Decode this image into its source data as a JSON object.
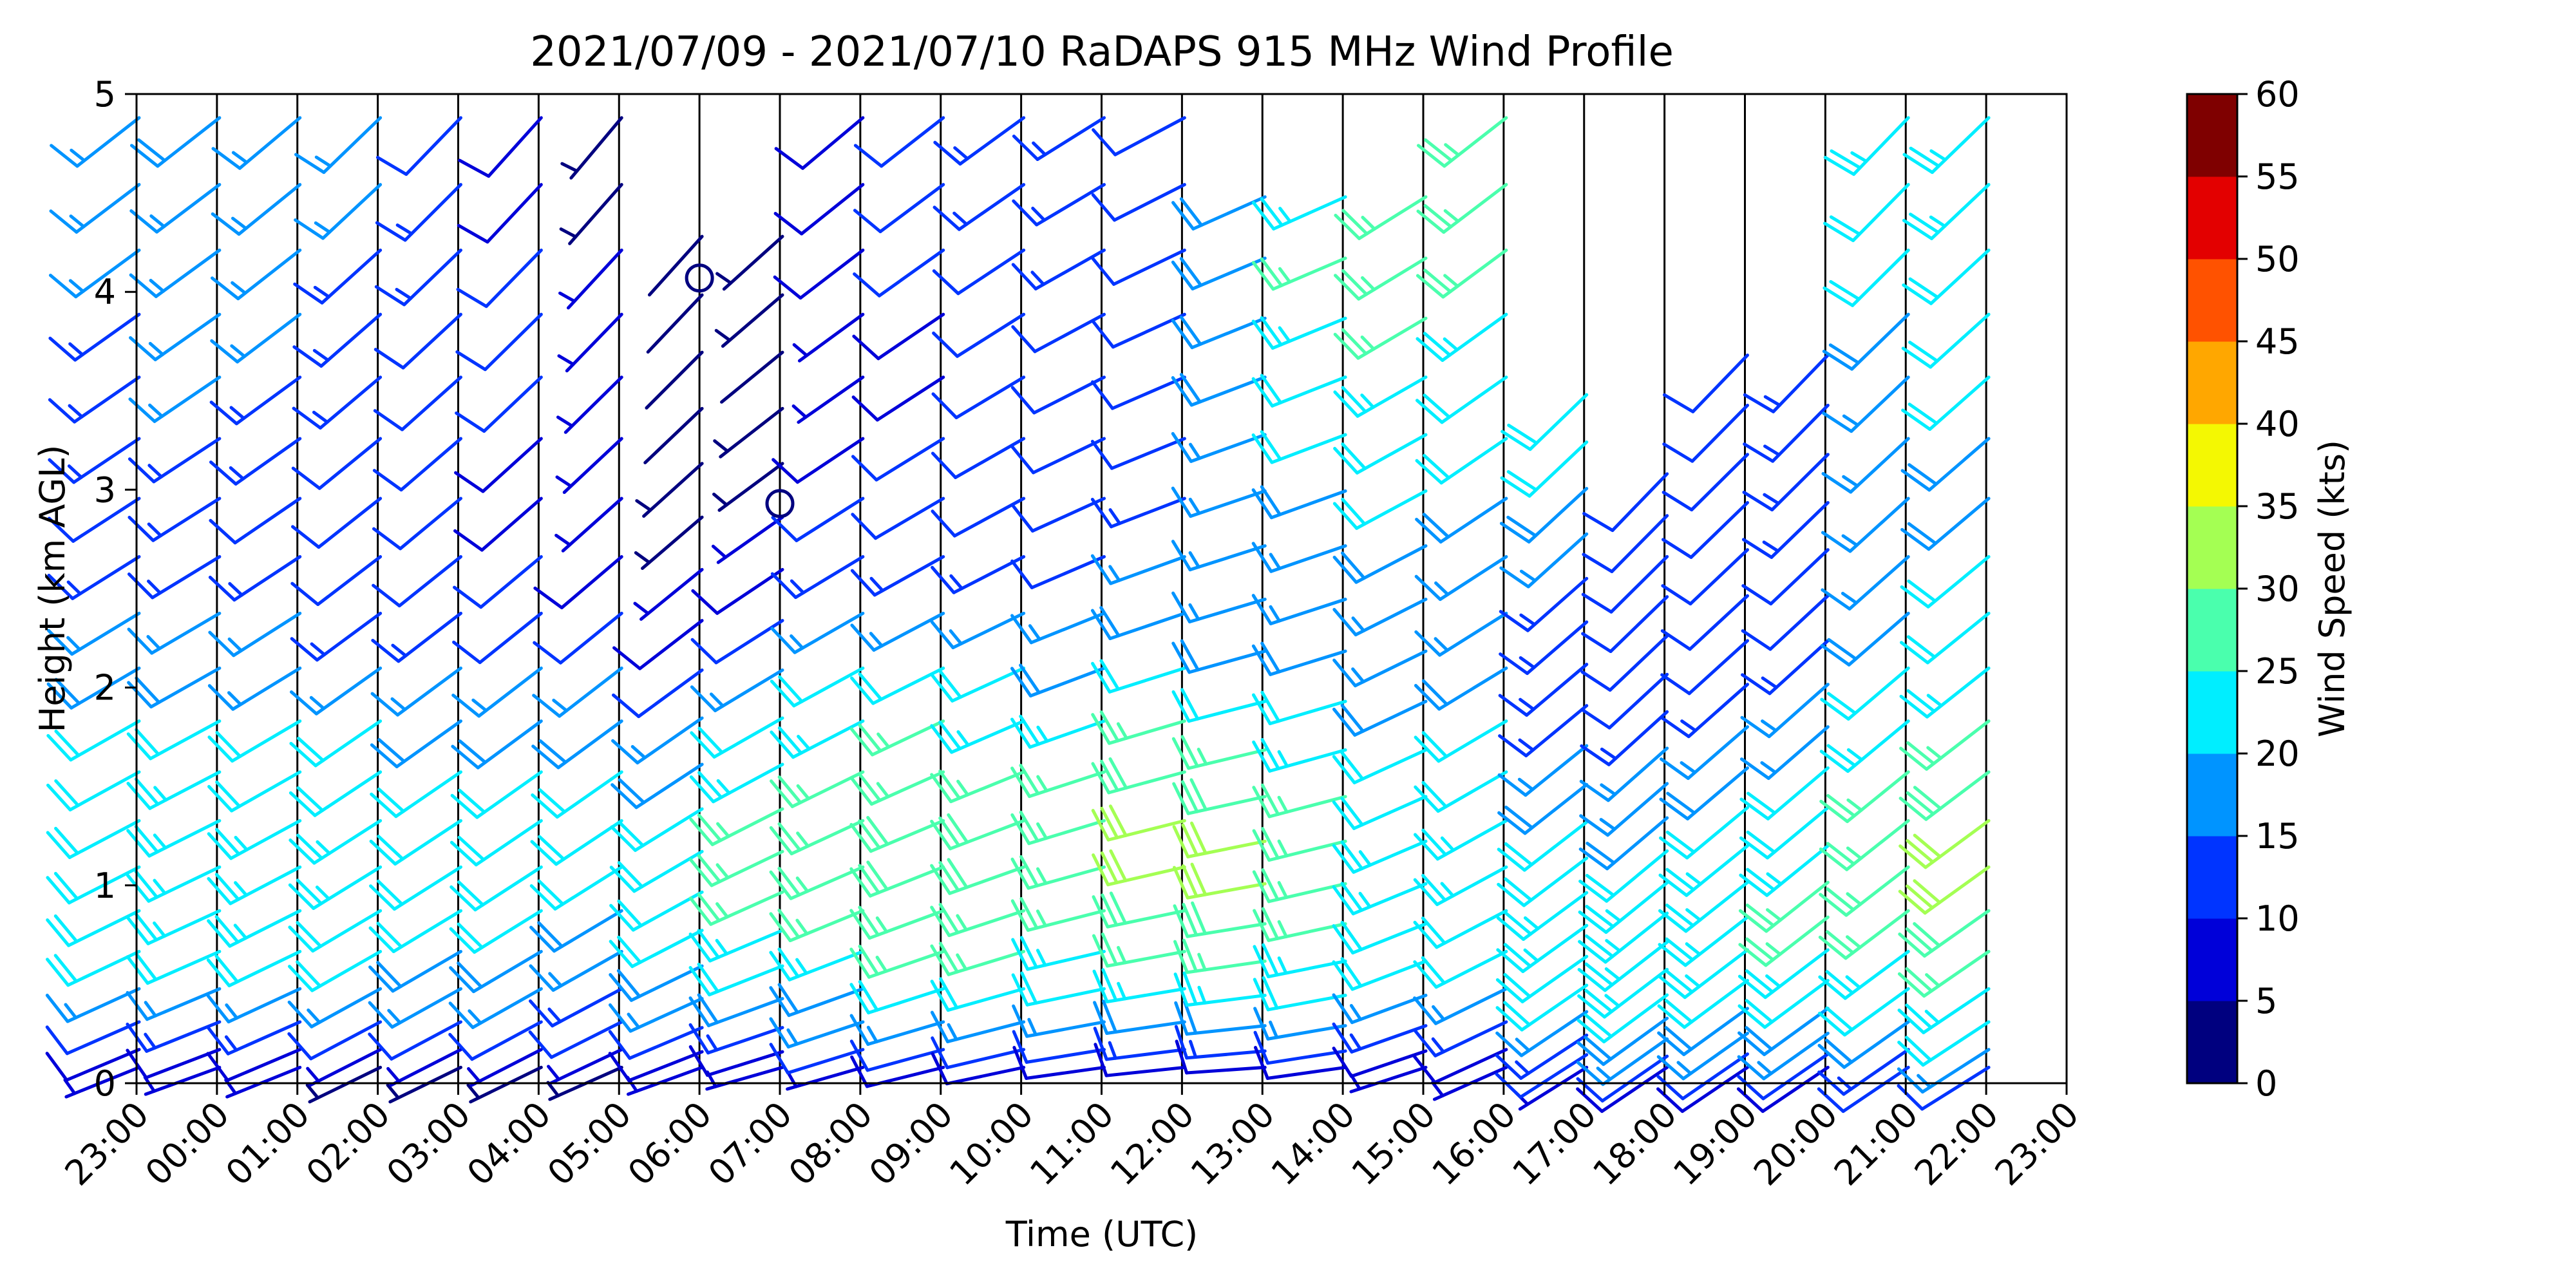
{
  "chart_data": {
    "type": "wind-barb-profile",
    "title": "2021/07/09 - 2021/07/10 RaDAPS 915 MHz Wind Profile",
    "xlabel": "Time (UTC)",
    "ylabel": "Height (km AGL)",
    "x_tick_labels": [
      "23:00",
      "00:00",
      "01:00",
      "02:00",
      "03:00",
      "04:00",
      "05:00",
      "06:00",
      "07:00",
      "08:00",
      "09:00",
      "10:00",
      "11:00",
      "12:00",
      "13:00",
      "14:00",
      "15:00",
      "16:00",
      "17:00",
      "18:00",
      "19:00",
      "20:00",
      "21:00",
      "22:00",
      "23:00"
    ],
    "y_ticks": [
      0,
      1,
      2,
      3,
      4,
      5
    ],
    "ylim": [
      0,
      5
    ],
    "colorbar": {
      "label": "Wind Speed (kts)",
      "ticks": [
        0,
        5,
        10,
        15,
        20,
        25,
        30,
        35,
        40,
        45,
        50,
        55,
        60
      ],
      "levels": [
        0,
        5,
        10,
        15,
        20,
        25,
        30,
        35,
        40,
        45,
        50,
        55,
        60
      ],
      "colors": [
        "#00007f",
        "#0000d9",
        "#0034ff",
        "#0094ff",
        "#00eeff",
        "#4affad",
        "#a4ff53",
        "#f4f802",
        "#ffa700",
        "#ff5200",
        "#e30000",
        "#7f0000"
      ]
    },
    "grid": "vertical lines at each hour",
    "profiles": [
      {
        "time": "23:00",
        "top_km": 5.0,
        "base_dir": 235,
        "dir_bottom": 248,
        "dir_top": 232,
        "speeds": [
          5,
          8,
          12,
          16,
          20,
          21,
          22,
          22,
          21,
          20,
          18,
          15,
          13,
          12,
          13,
          14,
          14,
          15,
          16,
          17
        ]
      },
      {
        "time": "00:00",
        "top_km": 5.0,
        "base_dir": 238,
        "dir_bottom": 250,
        "dir_top": 232,
        "speeds": [
          6,
          9,
          13,
          17,
          21,
          23,
          24,
          24,
          23,
          21,
          19,
          16,
          14,
          13,
          14,
          15,
          15,
          16,
          17,
          18
        ]
      },
      {
        "time": "01:00",
        "top_km": 5.0,
        "base_dir": 236,
        "dir_bottom": 248,
        "dir_top": 230,
        "speeds": [
          5,
          8,
          13,
          17,
          21,
          23,
          24,
          24,
          22,
          20,
          17,
          15,
          13,
          12,
          13,
          14,
          15,
          15,
          16,
          16
        ]
      },
      {
        "time": "02:00",
        "top_km": 5.0,
        "base_dir": 232,
        "dir_bottom": 244,
        "dir_top": 226,
        "speeds": [
          4,
          7,
          12,
          16,
          20,
          22,
          23,
          23,
          22,
          20,
          17,
          14,
          12,
          11,
          12,
          13,
          14,
          14,
          15,
          15
        ]
      },
      {
        "time": "03:00",
        "top_km": 5.0,
        "base_dir": 232,
        "dir_bottom": 244,
        "dir_top": 224,
        "speeds": [
          4,
          7,
          11,
          15,
          19,
          21,
          22,
          22,
          21,
          19,
          16,
          13,
          11,
          10,
          11,
          12,
          12,
          13,
          13,
          12
        ]
      },
      {
        "time": "04:00",
        "top_km": 5.0,
        "base_dir": 232,
        "dir_bottom": 244,
        "dir_top": 222,
        "speeds": [
          4,
          7,
          11,
          15,
          18,
          20,
          21,
          21,
          20,
          18,
          15,
          12,
          10,
          9,
          9,
          10,
          10,
          10,
          9,
          8
        ]
      },
      {
        "time": "05:00",
        "top_km": 5.0,
        "base_dir": 232,
        "dir_bottom": 246,
        "dir_top": 220,
        "speeds": [
          4,
          7,
          11,
          14,
          17,
          19,
          20,
          21,
          20,
          18,
          15,
          12,
          9,
          7,
          6,
          6,
          5,
          5,
          4,
          4
        ]
      },
      {
        "time": "06:00",
        "top_km": 4.4,
        "base_dir": 236,
        "dir_bottom": 250,
        "dir_top": 222,
        "speeds": [
          5,
          8,
          12,
          16,
          19,
          21,
          22,
          22,
          21,
          19,
          16,
          12,
          9,
          6,
          4,
          3,
          2,
          2,
          1,
          2
        ]
      },
      {
        "time": "07:00",
        "top_km": 4.4,
        "base_dir": 242,
        "dir_bottom": 254,
        "dir_top": 228,
        "speeds": [
          6,
          9,
          14,
          18,
          22,
          24,
          25,
          26,
          25,
          23,
          20,
          16,
          12,
          8,
          6,
          4,
          3,
          2,
          3,
          4
        ]
      },
      {
        "time": "08:00",
        "top_km": 5.0,
        "base_dir": 242,
        "dir_bottom": 254,
        "dir_top": 230,
        "speeds": [
          7,
          10,
          15,
          19,
          23,
          25,
          26,
          26,
          25,
          23,
          20,
          16,
          13,
          10,
          8,
          7,
          7,
          8,
          8,
          9
        ]
      },
      {
        "time": "09:00",
        "top_km": 5.0,
        "base_dir": 244,
        "dir_bottom": 256,
        "dir_top": 232,
        "speeds": [
          8,
          12,
          17,
          21,
          25,
          27,
          28,
          28,
          27,
          25,
          21,
          17,
          14,
          11,
          10,
          9,
          9,
          10,
          10,
          11
        ]
      },
      {
        "time": "10:00",
        "top_km": 5.0,
        "base_dir": 246,
        "dir_bottom": 258,
        "dir_top": 234,
        "speeds": [
          8,
          12,
          17,
          21,
          25,
          27,
          28,
          28,
          27,
          24,
          20,
          16,
          13,
          11,
          11,
          11,
          12,
          12,
          13,
          13
        ]
      },
      {
        "time": "11:00",
        "top_km": 5.0,
        "base_dir": 250,
        "dir_bottom": 262,
        "dir_top": 238,
        "speeds": [
          8,
          12,
          16,
          20,
          24,
          26,
          27,
          27,
          26,
          23,
          19,
          15,
          12,
          11,
          11,
          12,
          12,
          13,
          13,
          13
        ]
      },
      {
        "time": "12:00",
        "top_km": 5.0,
        "base_dir": 252,
        "dir_bottom": 264,
        "dir_top": 242,
        "speeds": [
          9,
          13,
          18,
          23,
          27,
          29,
          30,
          30,
          29,
          26,
          22,
          18,
          15,
          13,
          12,
          12,
          12,
          12,
          11,
          11
        ]
      },
      {
        "time": "13:00",
        "top_km": 4.6,
        "base_dir": 254,
        "dir_bottom": 266,
        "dir_top": 246,
        "speeds": [
          9,
          13,
          18,
          23,
          27,
          29,
          30,
          30,
          29,
          26,
          22,
          18,
          16,
          15,
          16,
          17,
          18,
          19,
          19,
          18
        ]
      },
      {
        "time": "14:00",
        "top_km": 4.6,
        "base_dir": 252,
        "dir_bottom": 262,
        "dir_top": 246,
        "speeds": [
          8,
          12,
          16,
          20,
          23,
          25,
          26,
          26,
          25,
          23,
          20,
          18,
          17,
          17,
          18,
          20,
          22,
          24,
          25,
          24
        ]
      },
      {
        "time": "15:00",
        "top_km": 4.6,
        "base_dir": 244,
        "dir_bottom": 252,
        "dir_top": 238,
        "speeds": [
          6,
          9,
          13,
          17,
          20,
          22,
          23,
          23,
          22,
          20,
          18,
          17,
          17,
          18,
          20,
          22,
          24,
          25,
          26,
          26
        ]
      },
      {
        "time": "16:00",
        "top_km": 5.0,
        "base_dir": 238,
        "dir_bottom": 246,
        "dir_top": 232,
        "speeds": [
          6,
          9,
          13,
          17,
          20,
          22,
          23,
          23,
          22,
          20,
          18,
          17,
          17,
          18,
          20,
          22,
          24,
          26,
          27,
          27
        ]
      },
      {
        "time": "17:00",
        "top_km": 3.6,
        "base_dir": 232,
        "dir_bottom": 238,
        "dir_top": 226,
        "speeds": [
          7,
          10,
          14,
          17,
          20,
          22,
          23,
          23,
          22,
          20,
          18,
          16,
          14,
          13,
          13,
          14,
          16,
          18,
          20,
          22
        ]
      },
      {
        "time": "18:00",
        "top_km": 3.2,
        "base_dir": 230,
        "dir_bottom": 236,
        "dir_top": 224,
        "speeds": [
          8,
          11,
          15,
          18,
          21,
          23,
          24,
          24,
          23,
          21,
          19,
          17,
          15,
          13,
          12,
          12,
          12,
          12,
          12,
          12
        ]
      },
      {
        "time": "19:00",
        "top_km": 3.8,
        "base_dir": 230,
        "dir_bottom": 236,
        "dir_top": 224,
        "speeds": [
          8,
          11,
          15,
          18,
          21,
          23,
          24,
          24,
          23,
          21,
          19,
          17,
          14,
          12,
          11,
          10,
          10,
          10,
          10,
          10
        ]
      },
      {
        "time": "20:00",
        "top_km": 3.8,
        "base_dir": 230,
        "dir_bottom": 236,
        "dir_top": 224,
        "speeds": [
          9,
          12,
          16,
          19,
          22,
          24,
          25,
          25,
          24,
          22,
          20,
          17,
          15,
          13,
          12,
          12,
          13,
          13,
          14,
          14
        ]
      },
      {
        "time": "21:00",
        "top_km": 5.0,
        "base_dir": 230,
        "dir_bottom": 236,
        "dir_top": 224,
        "speeds": [
          10,
          14,
          18,
          21,
          24,
          26,
          27,
          27,
          26,
          24,
          21,
          19,
          17,
          16,
          16,
          17,
          18,
          20,
          22,
          24
        ]
      },
      {
        "time": "22:00",
        "top_km": 5.0,
        "base_dir": 232,
        "dir_bottom": 238,
        "dir_top": 226,
        "speeds": [
          12,
          16,
          20,
          24,
          27,
          29,
          30,
          30,
          29,
          27,
          24,
          22,
          20,
          19,
          19,
          20,
          21,
          22,
          23,
          24
        ]
      }
    ],
    "calm_markers": [
      {
        "time": "06:00",
        "height_km": 4.07
      },
      {
        "time": "07:00",
        "height_km": 2.93
      }
    ]
  }
}
